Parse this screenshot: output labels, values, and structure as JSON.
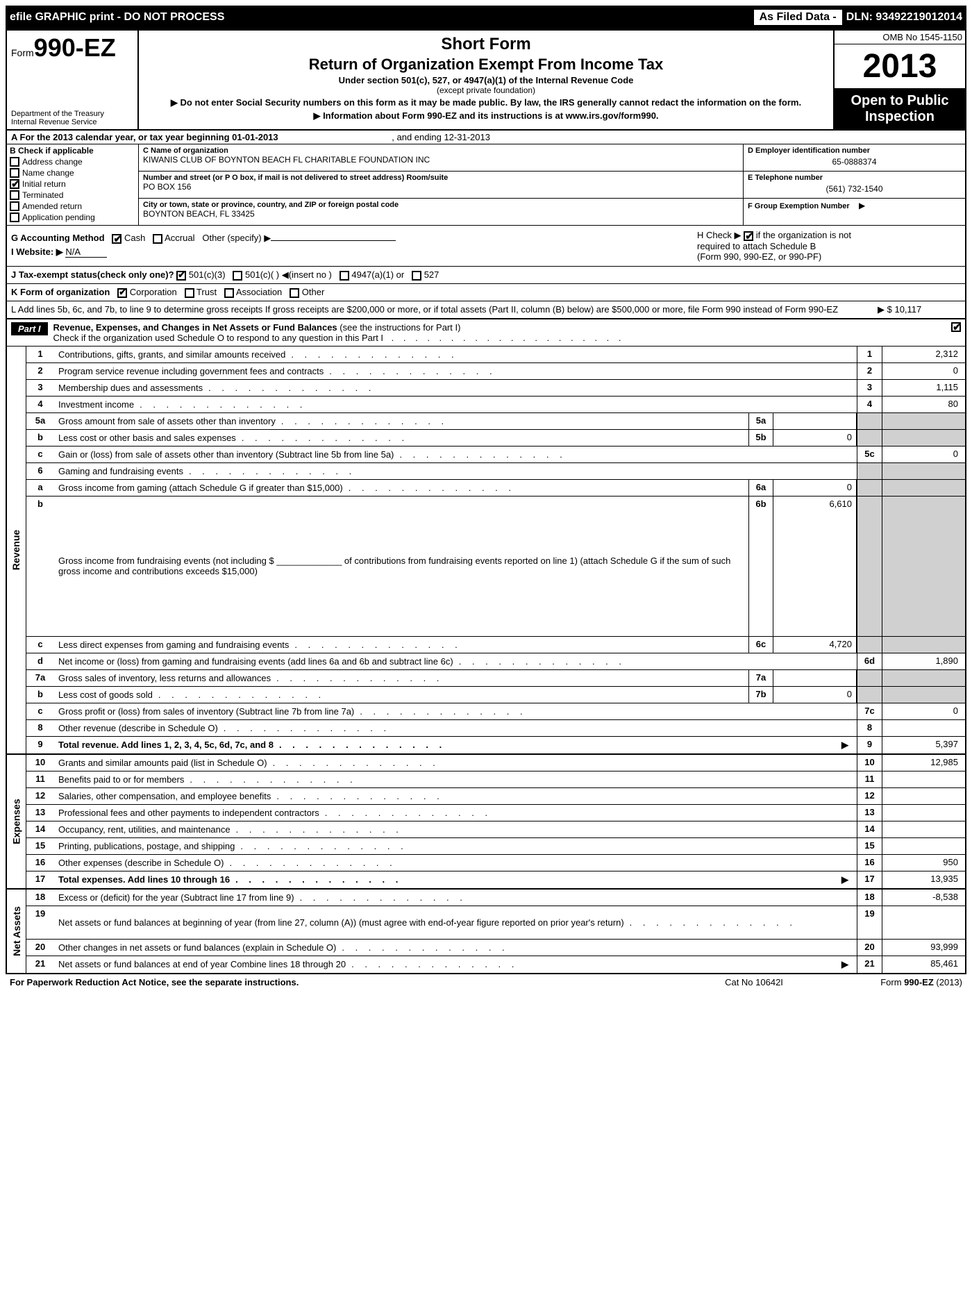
{
  "topbar": {
    "left": "efile GRAPHIC print - DO NOT PROCESS",
    "box1": "As Filed Data -",
    "dln": "DLN: 93492219012014"
  },
  "header": {
    "form_prefix": "Form",
    "form_number": "990-EZ",
    "dept1": "Department of the Treasury",
    "dept2": "Internal Revenue Service",
    "title1": "Short Form",
    "title2": "Return of Organization Exempt From Income Tax",
    "sub1": "Under section 501(c), 527, or 4947(a)(1) of the Internal Revenue Code",
    "sub2": "(except private foundation)",
    "arrow1": "▶ Do not enter Social Security numbers on this form as it may be made public. By law, the IRS generally cannot redact the information on the form.",
    "arrow2": "▶ Information about Form 990-EZ and its instructions is at www.irs.gov/form990.",
    "omb": "OMB No 1545-1150",
    "year": "2013",
    "inspect1": "Open to Public",
    "inspect2": "Inspection"
  },
  "rowA": {
    "label": "A  For the 2013 calendar year, or tax year beginning 01-01-2013",
    "end": ", and ending 12-31-2013"
  },
  "secB": {
    "head": "B  Check if applicable",
    "items": [
      {
        "label": "Address change",
        "checked": false
      },
      {
        "label": "Name change",
        "checked": false
      },
      {
        "label": "Initial return",
        "checked": true
      },
      {
        "label": "Terminated",
        "checked": false
      },
      {
        "label": "Amended return",
        "checked": false
      },
      {
        "label": "Application pending",
        "checked": false
      }
    ]
  },
  "secC": {
    "name_lbl": "C Name of organization",
    "name_val": "KIWANIS CLUB OF BOYNTON BEACH FL CHARITABLE FOUNDATION INC",
    "street_lbl": "Number and street (or P  O  box, if mail is not delivered to street address) Room/suite",
    "street_val": "PO BOX 156",
    "city_lbl": "City or town, state or province, country, and ZIP or foreign postal code",
    "city_val": "BOYNTON BEACH, FL  33425"
  },
  "secD": {
    "ein_lbl": "D Employer identification number",
    "ein_val": "65-0888374",
    "tel_lbl": "E Telephone number",
    "tel_val": "(561) 732-1540",
    "grp_lbl": "F Group Exemption Number",
    "grp_arrow": "▶"
  },
  "secG": {
    "label": "G Accounting Method",
    "cash": "Cash",
    "accrual": "Accrual",
    "other": "Other (specify) ▶"
  },
  "secH": {
    "line1": "H  Check ▶",
    "line1b": "if the organization is not",
    "line2": "required to attach Schedule B",
    "line3": "(Form 990, 990-EZ, or 990-PF)"
  },
  "secI": {
    "label": "I Website: ▶",
    "val": "N/A"
  },
  "secJ": {
    "label": "J Tax-exempt status(check only one)?",
    "opt1": "501(c)(3)",
    "opt2": "501(c)(  ) ◀(insert no )",
    "opt3": "4947(a)(1) or",
    "opt4": "527"
  },
  "secK": {
    "label": "K Form of organization",
    "opts": [
      "Corporation",
      "Trust",
      "Association",
      "Other"
    ]
  },
  "secL": {
    "text": "L Add lines 5b, 6c, and 7b, to line 9 to determine gross receipts  If gross receipts are $200,000 or more, or if total assets (Part II, column (B) below) are $500,000 or more, file Form 990 instead of Form 990-EZ",
    "arrow": "▶",
    "val": "$ 10,117"
  },
  "part1": {
    "tag": "Part I",
    "title": "Revenue, Expenses, and Changes in Net Assets or Fund Balances",
    "subtitle": "(see the instructions for Part I)",
    "check_text": "Check if the organization used Schedule O to respond to any question in this Part I"
  },
  "lines": {
    "revenue": [
      {
        "n": "1",
        "desc": "Contributions, gifts, grants, and similar amounts received",
        "rn": "1",
        "rv": "2,312"
      },
      {
        "n": "2",
        "desc": "Program service revenue including government fees and contracts",
        "rn": "2",
        "rv": "0"
      },
      {
        "n": "3",
        "desc": "Membership dues and assessments",
        "rn": "3",
        "rv": "1,115"
      },
      {
        "n": "4",
        "desc": "Investment income",
        "rn": "4",
        "rv": "80"
      },
      {
        "n": "5a",
        "desc": "Gross amount from sale of assets other than inventory",
        "mn": "5a",
        "mv": "",
        "shade": true
      },
      {
        "n": "b",
        "desc": "Less  cost or other basis and sales expenses",
        "mn": "5b",
        "mv": "0",
        "shade": true
      },
      {
        "n": "c",
        "desc": "Gain or (loss) from sale of assets other than inventory (Subtract line 5b from line 5a)",
        "rn": "5c",
        "rv": "0"
      },
      {
        "n": "6",
        "desc": "Gaming and fundraising events",
        "shade": true,
        "noright": true
      },
      {
        "n": "a",
        "desc": "Gross income from gaming (attach Schedule G if greater than $15,000)",
        "mn": "6a",
        "mv": "0",
        "shade": true
      },
      {
        "n": "b",
        "desc": "Gross income from fundraising events (not including $ _____________ of contributions from fundraising events reported on line 1) (attach Schedule G if the sum of such gross income and contributions exceeds $15,000)",
        "mn": "6b",
        "mv": "6,610",
        "shade": true,
        "tall": true
      },
      {
        "n": "c",
        "desc": "Less  direct expenses from gaming and fundraising events",
        "mn": "6c",
        "mv": "4,720",
        "shade": true
      },
      {
        "n": "d",
        "desc": "Net income or (loss) from gaming and fundraising events (add lines 6a and 6b and subtract line 6c)",
        "rn": "6d",
        "rv": "1,890"
      },
      {
        "n": "7a",
        "desc": "Gross sales of inventory, less returns and allowances",
        "mn": "7a",
        "mv": "",
        "shade": true
      },
      {
        "n": "b",
        "desc": "Less  cost of goods sold",
        "mn": "7b",
        "mv": "0",
        "shade": true
      },
      {
        "n": "c",
        "desc": "Gross profit or (loss) from sales of inventory (Subtract line 7b from line 7a)",
        "rn": "7c",
        "rv": "0"
      },
      {
        "n": "8",
        "desc": "Other revenue (describe in Schedule O)",
        "rn": "8",
        "rv": ""
      },
      {
        "n": "9",
        "desc": "Total revenue. Add lines 1, 2, 3, 4, 5c, 6d, 7c, and 8",
        "rn": "9",
        "rv": "5,397",
        "bold": true,
        "arrow": true
      }
    ],
    "expenses": [
      {
        "n": "10",
        "desc": "Grants and similar amounts paid (list in Schedule O)",
        "rn": "10",
        "rv": "12,985"
      },
      {
        "n": "11",
        "desc": "Benefits paid to or for members",
        "rn": "11",
        "rv": ""
      },
      {
        "n": "12",
        "desc": "Salaries, other compensation, and employee benefits",
        "rn": "12",
        "rv": ""
      },
      {
        "n": "13",
        "desc": "Professional fees and other payments to independent contractors",
        "rn": "13",
        "rv": ""
      },
      {
        "n": "14",
        "desc": "Occupancy, rent, utilities, and maintenance",
        "rn": "14",
        "rv": ""
      },
      {
        "n": "15",
        "desc": "Printing, publications, postage, and shipping",
        "rn": "15",
        "rv": ""
      },
      {
        "n": "16",
        "desc": "Other expenses (describe in Schedule O)",
        "rn": "16",
        "rv": "950"
      },
      {
        "n": "17",
        "desc": "Total expenses. Add lines 10 through 16",
        "rn": "17",
        "rv": "13,935",
        "bold": true,
        "arrow": true
      }
    ],
    "netassets": [
      {
        "n": "18",
        "desc": "Excess or (deficit) for the year (Subtract line 17 from line 9)",
        "rn": "18",
        "rv": "-8,538"
      },
      {
        "n": "19",
        "desc": "Net assets or fund balances at beginning of year (from line 27, column (A)) (must agree with end-of-year figure reported on prior year's return)",
        "rn": "19",
        "rv": "",
        "tall": true
      },
      {
        "n": "20",
        "desc": "Other changes in net assets or fund balances (explain in Schedule O)",
        "rn": "20",
        "rv": "93,999"
      },
      {
        "n": "21",
        "desc": "Net assets or fund balances at end of year  Combine lines 18 through 20",
        "rn": "21",
        "rv": "85,461",
        "arrow": true
      }
    ]
  },
  "footer": {
    "left": "For Paperwork Reduction Act Notice, see the separate instructions.",
    "mid": "Cat No 10642I",
    "right": "Form 990-EZ (2013)"
  },
  "colors": {
    "black": "#000000",
    "white": "#ffffff",
    "shade": "#d0d0d0"
  }
}
